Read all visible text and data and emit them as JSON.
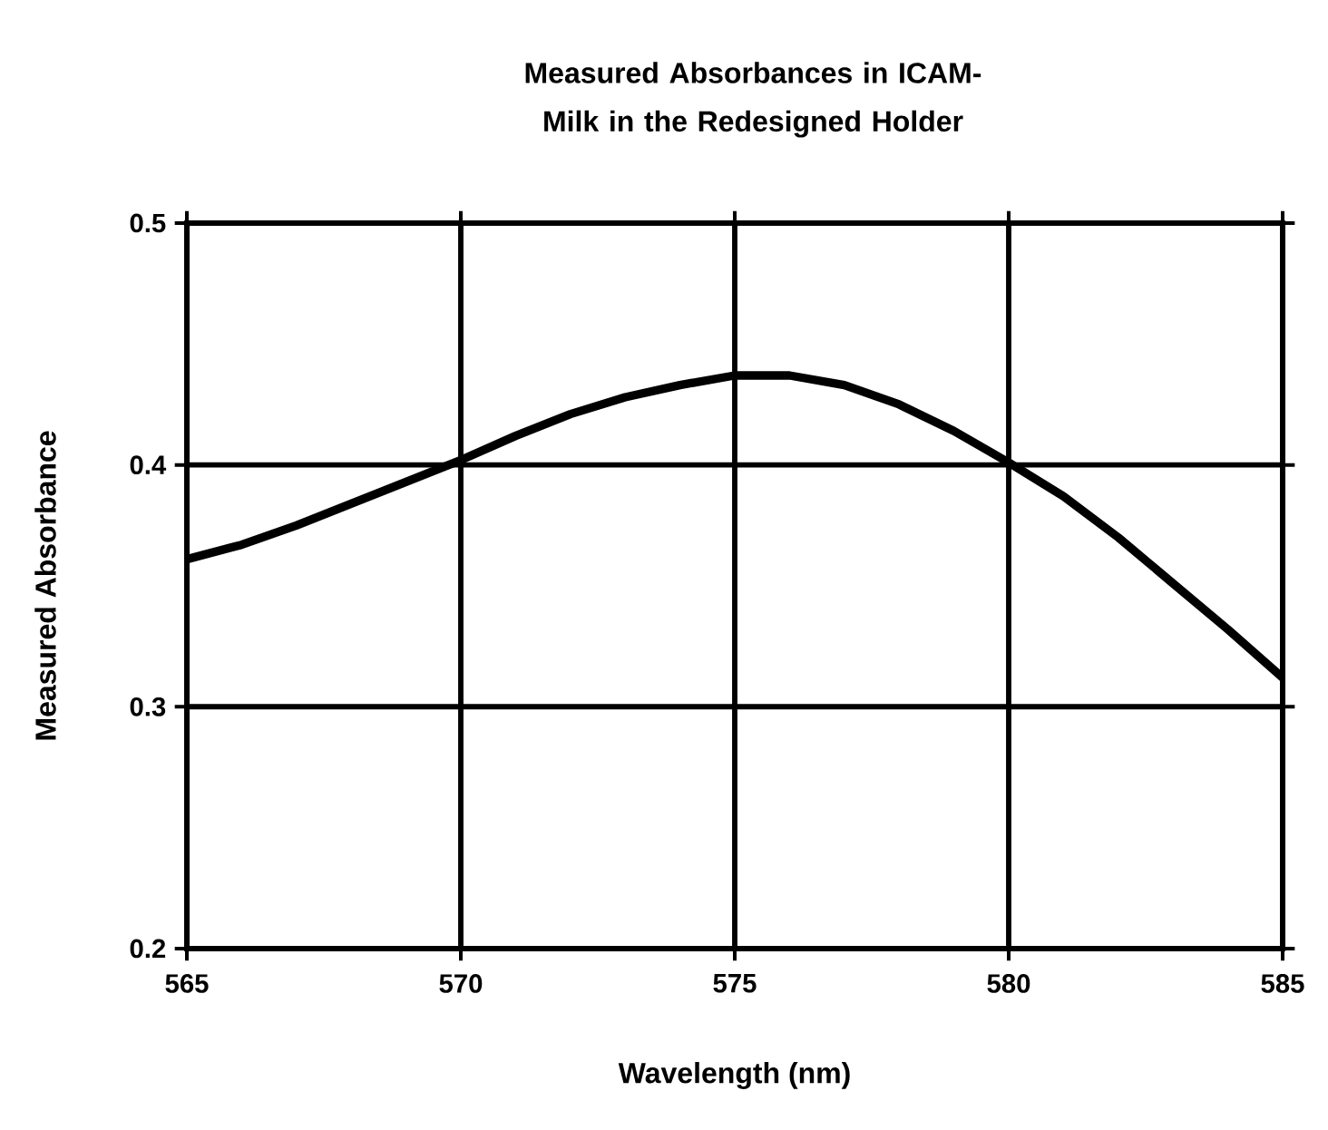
{
  "chart_data": {
    "type": "line",
    "title": "Measured Absorbances in ICAM-Milk in the Redesigned Holder",
    "xlabel": "Wavelength (nm)",
    "ylabel": "Measured Absorbance",
    "x": [
      565,
      566,
      567,
      568,
      569,
      570,
      571,
      572,
      573,
      574,
      575,
      576,
      577,
      578,
      579,
      580,
      581,
      582,
      583,
      584,
      585
    ],
    "values": [
      0.361,
      0.367,
      0.375,
      0.384,
      0.393,
      0.402,
      0.412,
      0.421,
      0.428,
      0.433,
      0.437,
      0.437,
      0.433,
      0.425,
      0.414,
      0.401,
      0.387,
      0.37,
      0.351,
      0.332,
      0.312
    ],
    "color": "#000000",
    "xlim": [
      565,
      585
    ],
    "ylim": [
      0.2,
      0.5
    ],
    "xticks": [
      565,
      570,
      575,
      580,
      585
    ],
    "yticks": [
      0.2,
      0.3,
      0.4,
      0.5
    ],
    "grid": true,
    "line_style": "solid",
    "marker": "none"
  }
}
